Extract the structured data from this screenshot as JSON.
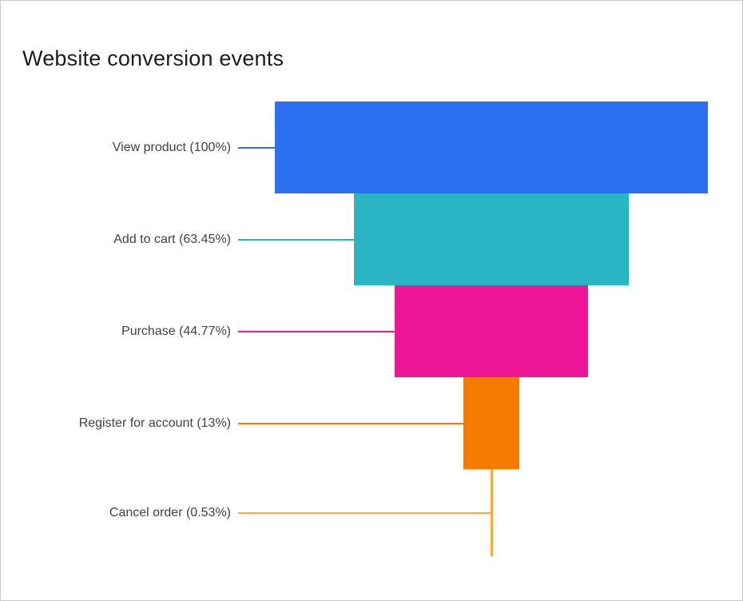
{
  "chart_data": {
    "type": "funnel",
    "title": "Website conversion events",
    "stages": [
      {
        "name": "View product",
        "percent": 100,
        "label": "View product (100%)",
        "color": "#2a6ff0"
      },
      {
        "name": "Add to cart",
        "percent": 63.45,
        "label": "Add to cart (63.45%)",
        "color": "#2bb5c4"
      },
      {
        "name": "Purchase",
        "percent": 44.77,
        "label": "Purchase (44.77%)",
        "color": "#ed1697"
      },
      {
        "name": "Register for account",
        "percent": 13,
        "label": "Register for account (13%)",
        "color": "#f47b00"
      },
      {
        "name": "Cancel order",
        "percent": 0.53,
        "label": "Cancel order (0.53%)",
        "color": "#f9a93d"
      }
    ],
    "layout": {
      "orientation": "funnel-vertical",
      "labels_position": "left",
      "legend": "none",
      "grid": false
    }
  }
}
